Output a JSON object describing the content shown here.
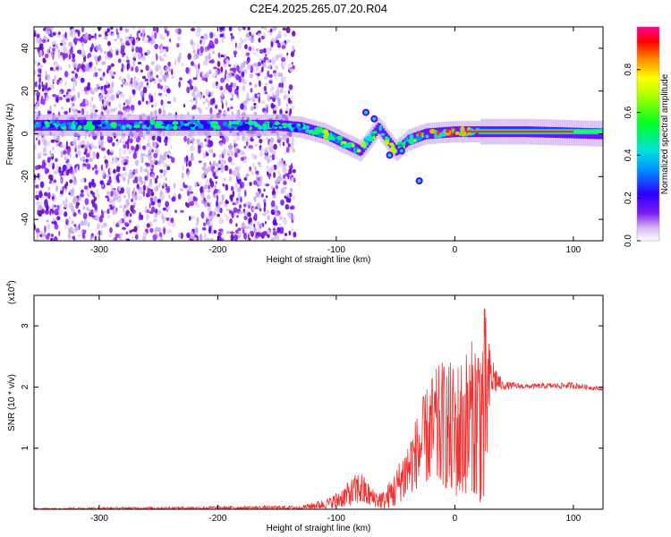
{
  "title": "C2E4.2025.265.07.20.R04",
  "chart_data": [
    {
      "type": "heatmap",
      "xlabel": "Height of straight line (km)",
      "ylabel": "Frequency (Hz)",
      "xlim": [
        -355,
        125
      ],
      "ylim": [
        -50,
        50
      ],
      "x_ticks": [
        -300,
        -200,
        -100,
        0,
        100
      ],
      "y_ticks": [
        -40,
        -20,
        0,
        20,
        40
      ],
      "colorbar": {
        "label": "Normalized spectral amplitude",
        "range": [
          0,
          1
        ],
        "ticks": [
          0.0,
          0.2,
          0.4,
          0.6,
          0.8
        ],
        "tick_labels": [
          "0.0",
          "0.2",
          "0.4",
          "0.6",
          "0.8"
        ]
      },
      "ridge": [
        {
          "x": -355,
          "y": 4
        },
        {
          "x": -250,
          "y": 4
        },
        {
          "x": -150,
          "y": 4
        },
        {
          "x": -130,
          "y": 3
        },
        {
          "x": -110,
          "y": 0
        },
        {
          "x": -95,
          "y": -4
        },
        {
          "x": -80,
          "y": -8
        },
        {
          "x": -65,
          "y": 3
        },
        {
          "x": -50,
          "y": -8
        },
        {
          "x": -40,
          "y": -3
        },
        {
          "x": -25,
          "y": 0
        },
        {
          "x": 0,
          "y": 1
        },
        {
          "x": 20,
          "y": 1
        },
        {
          "x": 60,
          "y": 1
        },
        {
          "x": 125,
          "y": 0
        }
      ],
      "noise_region_x": [
        -355,
        -135
      ]
    },
    {
      "type": "line",
      "xlabel": "Height of straight line (km)",
      "ylabel": "SNR (10 * v/v)",
      "multiplier": "(x10",
      "multiplier_exp": "4",
      "multiplier_close": ")",
      "xlim": [
        -355,
        125
      ],
      "ylim": [
        0,
        3.5
      ],
      "x_ticks": [
        -300,
        -200,
        -100,
        0,
        100
      ],
      "y_ticks": [
        1,
        2,
        3
      ],
      "series_color": "#ee3333",
      "envelope": [
        {
          "x": -355,
          "lo": 0.0,
          "hi": 0.02
        },
        {
          "x": -200,
          "lo": 0.0,
          "hi": 0.05
        },
        {
          "x": -130,
          "lo": 0.0,
          "hi": 0.06
        },
        {
          "x": -105,
          "lo": 0.02,
          "hi": 0.2
        },
        {
          "x": -90,
          "lo": 0.05,
          "hi": 0.45
        },
        {
          "x": -80,
          "lo": 0.1,
          "hi": 0.65
        },
        {
          "x": -70,
          "lo": 0.05,
          "hi": 0.35
        },
        {
          "x": -60,
          "lo": 0.0,
          "hi": 0.3
        },
        {
          "x": -50,
          "lo": 0.05,
          "hi": 0.65
        },
        {
          "x": -35,
          "lo": 0.3,
          "hi": 1.4
        },
        {
          "x": -20,
          "lo": 0.5,
          "hi": 2.2
        },
        {
          "x": -10,
          "lo": 0.4,
          "hi": 2.45
        },
        {
          "x": 0,
          "lo": 0.2,
          "hi": 2.4
        },
        {
          "x": 15,
          "lo": 0.3,
          "hi": 2.8
        },
        {
          "x": 25,
          "lo": 0.0,
          "hi": 3.4
        },
        {
          "x": 30,
          "lo": 1.8,
          "hi": 2.6
        },
        {
          "x": 40,
          "lo": 1.95,
          "hi": 2.1
        },
        {
          "x": 60,
          "lo": 1.97,
          "hi": 2.05
        },
        {
          "x": 100,
          "lo": 1.97,
          "hi": 2.08
        },
        {
          "x": 125,
          "lo": 1.94,
          "hi": 1.99
        }
      ]
    }
  ]
}
